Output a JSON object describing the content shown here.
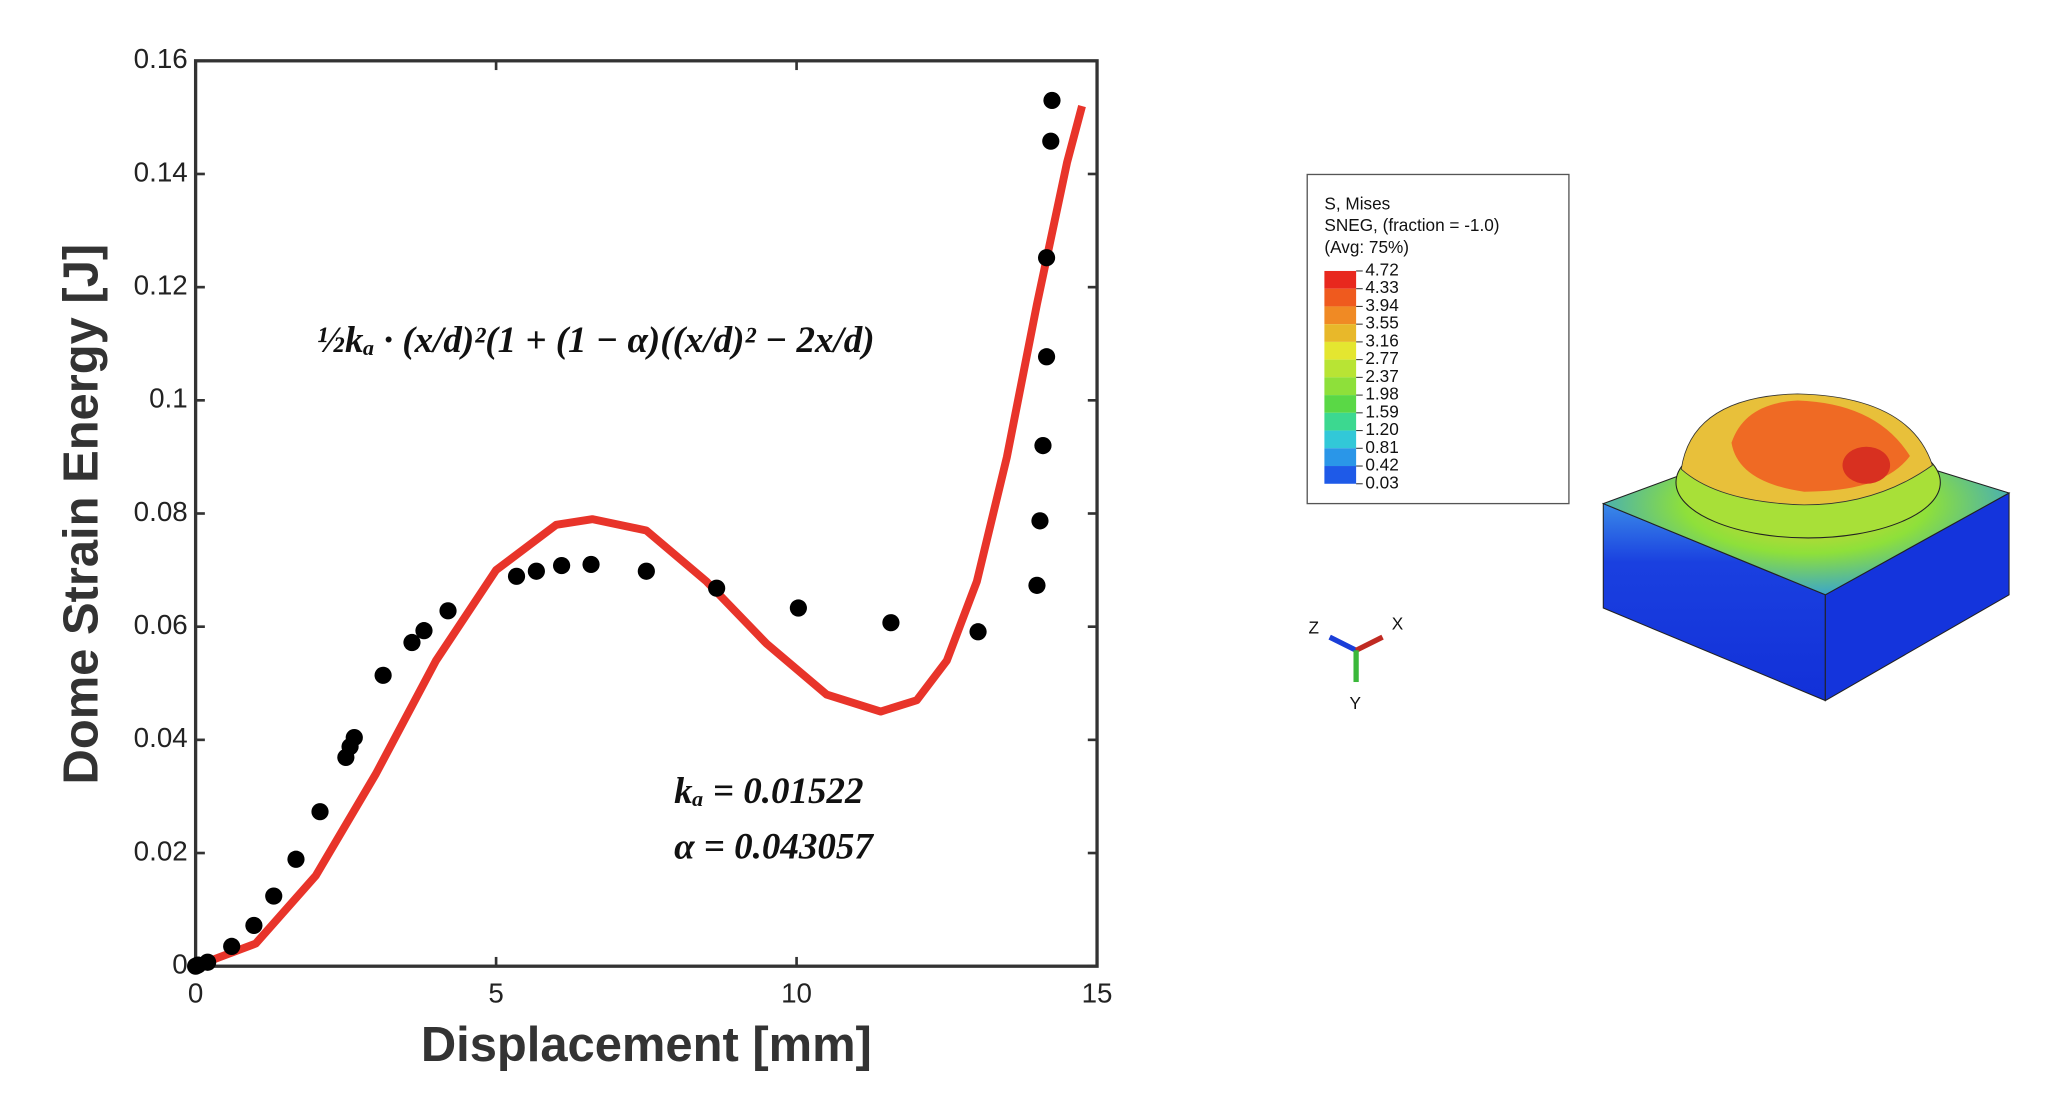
{
  "chart_data": {
    "type": "scatter",
    "xlabel": "Displacement [mm]",
    "ylabel": "Dome Strain Energy [J]",
    "xlim": [
      0,
      15
    ],
    "ylim": [
      0,
      0.16
    ],
    "xticks": [
      0,
      5,
      10,
      15
    ],
    "yticks": [
      0,
      0.02,
      0.04,
      0.06,
      0.08,
      0.1,
      0.12,
      0.14,
      0.16
    ],
    "annotations": [
      "½kₐ · (x/d)²(1 + (1 − α)((x/d)² − 2x/d)",
      "kₐ =  0.01522",
      "α =  0.043057"
    ],
    "series": [
      {
        "type": "scatter",
        "color": "#000000",
        "x": [
          0,
          0.04,
          0.2,
          0.6,
          0.97,
          1.3,
          1.67,
          2.07,
          2.5,
          2.57,
          2.64,
          3.12,
          3.6,
          3.8,
          4.2,
          5.34,
          5.67,
          6.09,
          6.58,
          7.5,
          8.67,
          10.03,
          11.57,
          13.02,
          14.0,
          14.05,
          14.1,
          14.16,
          14.16,
          14.23,
          14.25
        ],
        "values": [
          0,
          0.0002,
          0.0007,
          0.0035,
          0.0072,
          0.0124,
          0.0189,
          0.0273,
          0.0369,
          0.0388,
          0.0404,
          0.0514,
          0.0572,
          0.0593,
          0.0628,
          0.0689,
          0.0698,
          0.0708,
          0.071,
          0.0698,
          0.0668,
          0.0633,
          0.0607,
          0.0591,
          0.0673,
          0.0787,
          0.092,
          0.1077,
          0.1252,
          0.1458,
          0.153
        ]
      },
      {
        "type": "line",
        "color": "#e8342a",
        "x": [
          0,
          1,
          2,
          3,
          4,
          5,
          6,
          6.6,
          7.5,
          8.5,
          9.5,
          10.5,
          11.4,
          12,
          12.5,
          13,
          13.5,
          14,
          14.5,
          14.75
        ],
        "values": [
          0,
          0.004,
          0.016,
          0.034,
          0.054,
          0.07,
          0.078,
          0.079,
          0.077,
          0.068,
          0.057,
          0.048,
          0.045,
          0.047,
          0.054,
          0.068,
          0.09,
          0.117,
          0.142,
          0.152
        ]
      }
    ]
  },
  "fem_legend": {
    "title_lines": [
      "S, Mises",
      "SNEG, (fraction = -1.0)",
      "(Avg: 75%)"
    ],
    "labels": [
      "4.72",
      "4.33",
      "3.94",
      "3.55",
      "3.16",
      "2.77",
      "2.37",
      "1.98",
      "1.59",
      "1.20",
      "0.81",
      "0.42",
      "0.03"
    ],
    "colors": [
      "#e8281e",
      "#ef5a1e",
      "#f08a24",
      "#e8b82a",
      "#e4e630",
      "#b8e434",
      "#8ee03a",
      "#5ad846",
      "#3cd890",
      "#32c8d8",
      "#2a96e8",
      "#1e5ae8",
      "#1228e0"
    ]
  },
  "triad": {
    "labels": [
      "Z",
      "X",
      "Y"
    ]
  }
}
